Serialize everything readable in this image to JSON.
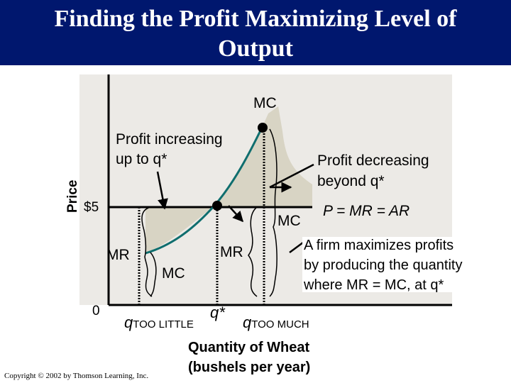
{
  "header": {
    "title_line1": "Finding the Profit Maximizing Level of",
    "title_line2": "Output"
  },
  "axes": {
    "y_label": "Price",
    "price_tick": "$5",
    "origin": "0",
    "x_label_line1": "Quantity of Wheat",
    "x_label_line2": "(bushels per year)"
  },
  "quantities": {
    "q_little": "q",
    "q_little_sub": "TOO LITTLE",
    "q_star": "q*",
    "q_much": "q",
    "q_much_sub": "TOO MUCH"
  },
  "curves": {
    "mc_top": "MC",
    "demand": "P = MR = AR"
  },
  "labels": {
    "mr_left": "MR",
    "mc_left": "MC",
    "mr_right": "MR",
    "mc_right": "MC"
  },
  "annotations": {
    "increasing_line1": "Profit increasing",
    "increasing_line2": "up to q*",
    "decreasing_line1": "Profit decreasing",
    "decreasing_line2": "beyond q*",
    "rule_line1": "A firm maximizes profits",
    "rule_line2": "by producing the quantity",
    "rule_line3": "where MR = MC, at q*"
  },
  "colors": {
    "header": "#00176e",
    "plot_bg": "#eceae6",
    "shade": "#d8d4c4",
    "mc_curve": "#0f6e6e"
  },
  "footer": {
    "copyright": "Copyright © 2002 by Thomson Learning, Inc."
  }
}
